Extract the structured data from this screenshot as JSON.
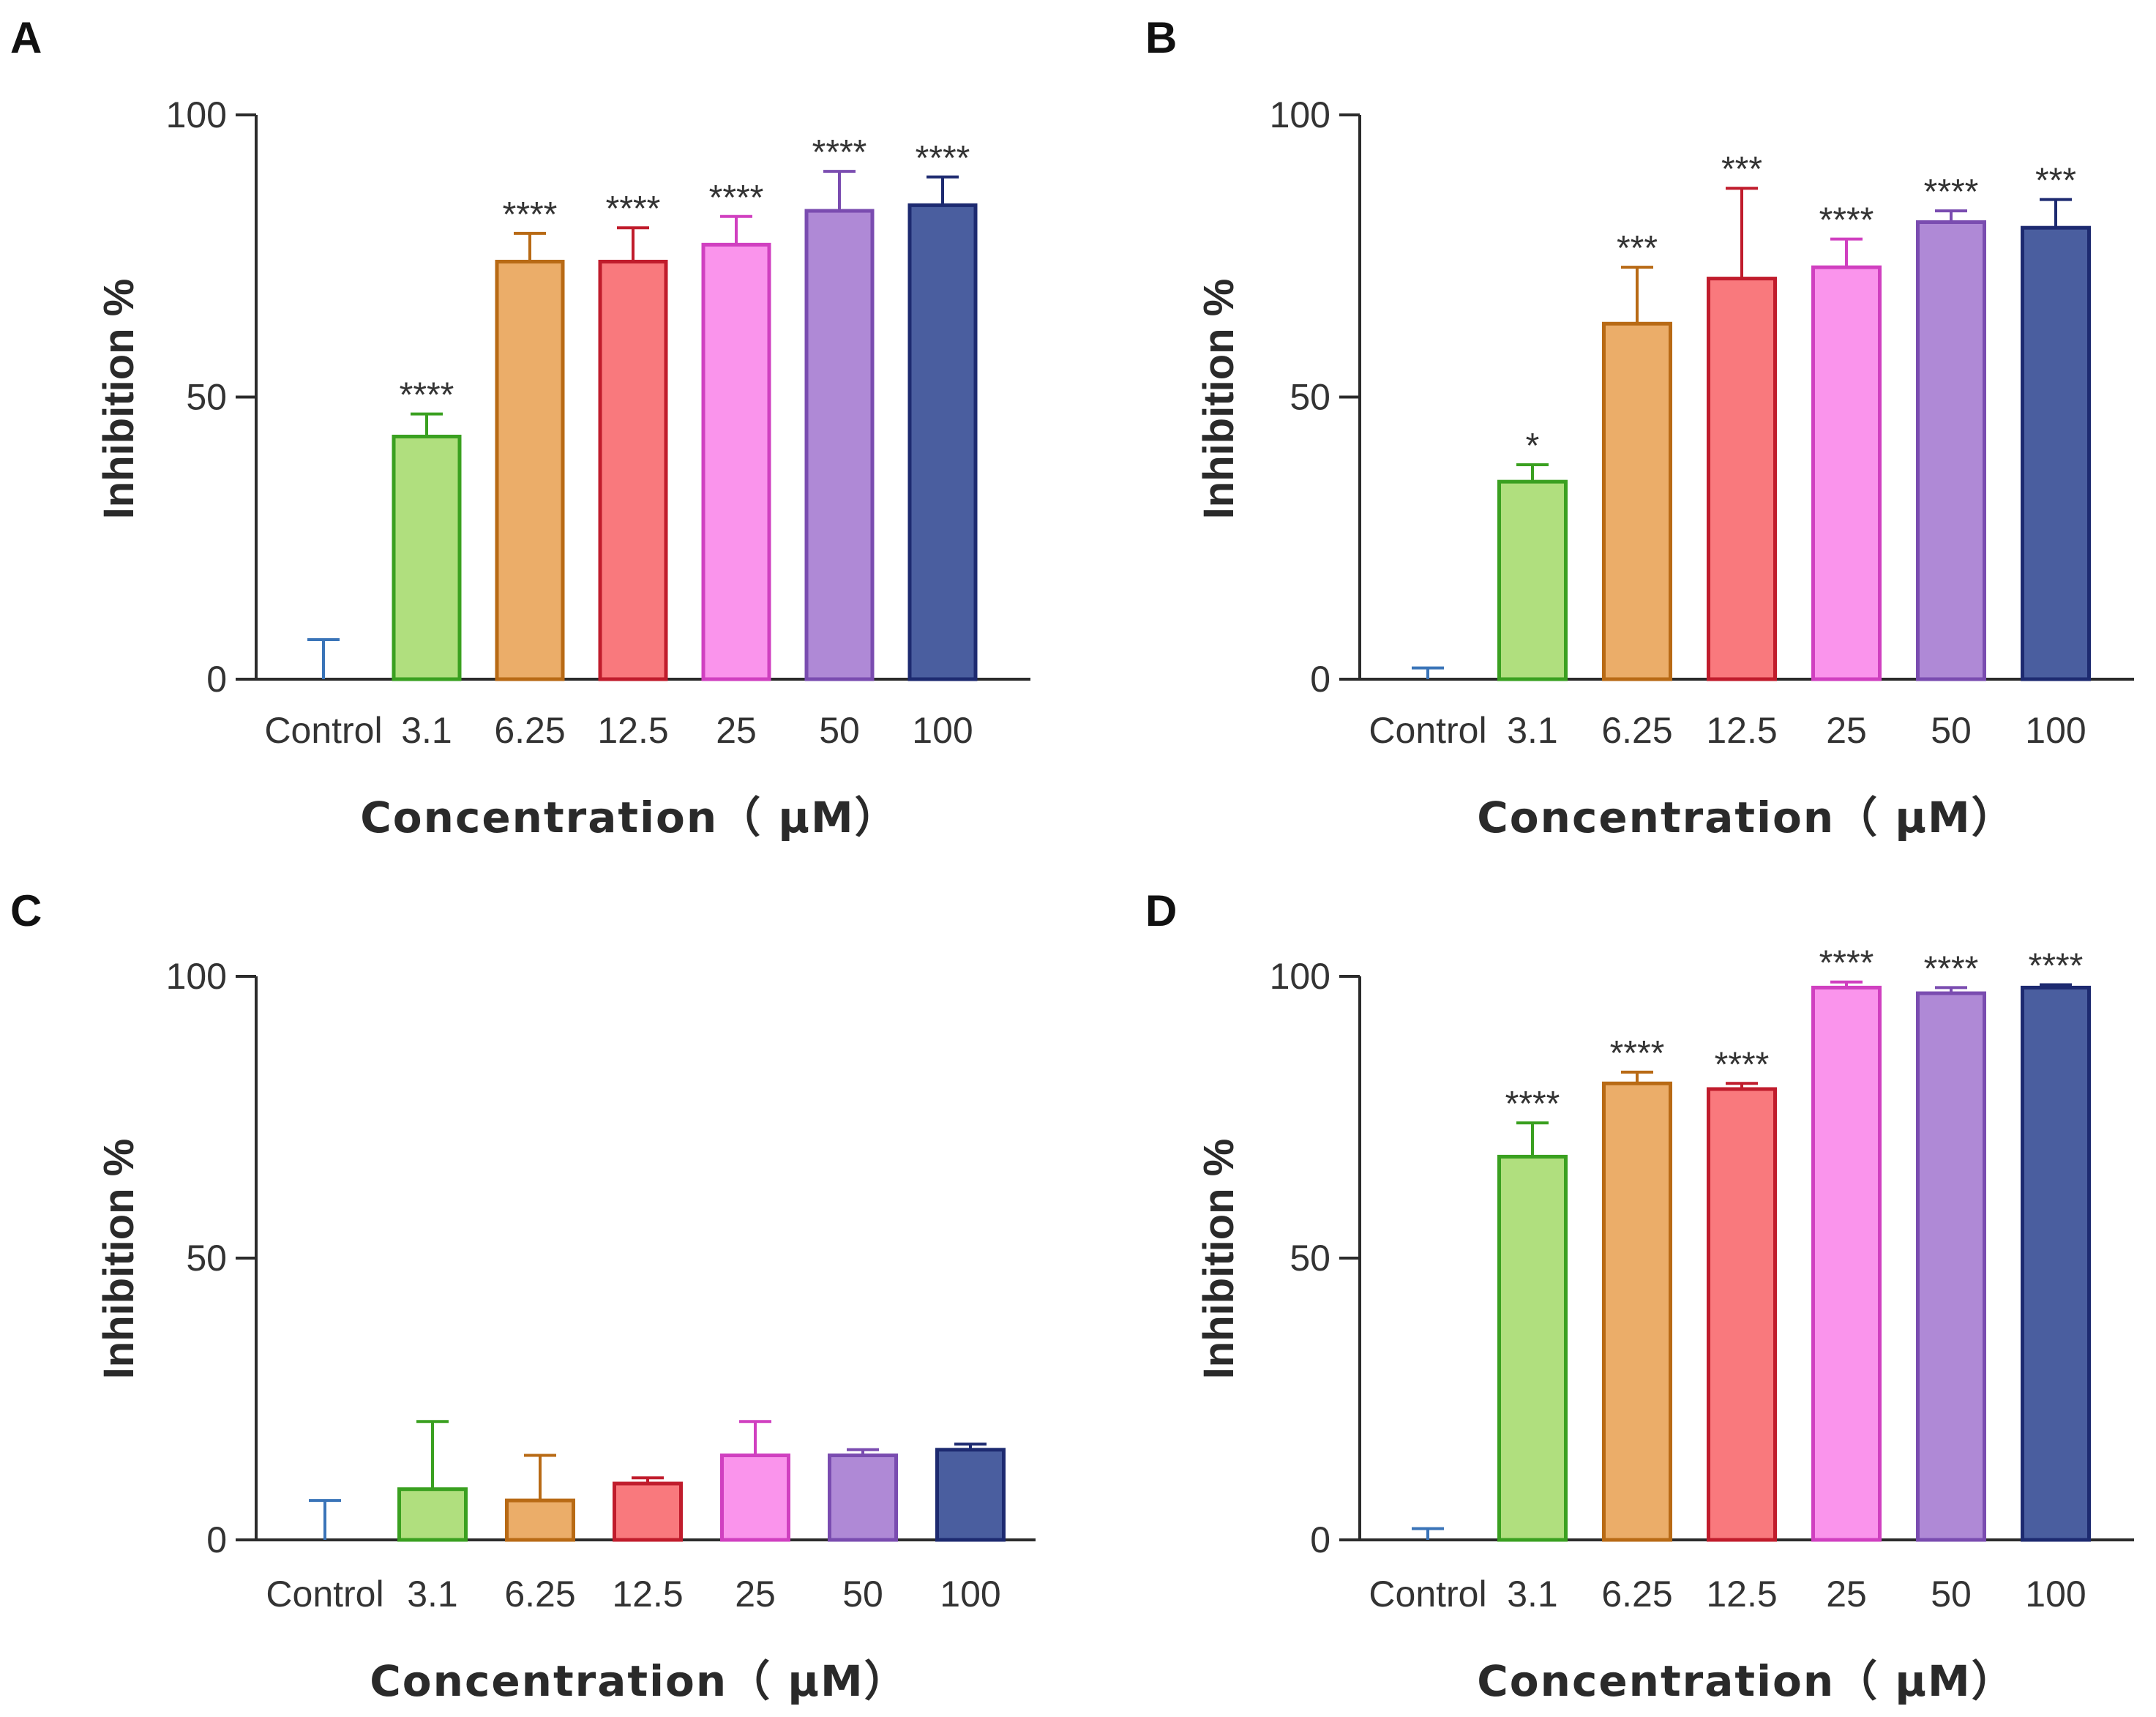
{
  "colors": {
    "axis": "#2b2b2b",
    "fills": [
      "#4a84c8",
      "#b0df7e",
      "#ebad69",
      "#f9797d",
      "#fa94ec",
      "#af89d6",
      "#4a5e9f"
    ],
    "strokes": [
      "#3a74b8",
      "#3aa020",
      "#b86a15",
      "#c01c2c",
      "#d040c0",
      "#7a4cb0",
      "#1d2a70"
    ]
  },
  "chart_data": [
    {
      "panel": "A",
      "type": "bar",
      "xlabel": "Concentration（ μM）",
      "ylabel": "Inhibition %",
      "ylim": [
        0,
        100
      ],
      "yticks": [
        "0",
        "50",
        "100"
      ],
      "categories": [
        "Control",
        "3.1",
        "6.25",
        "12.5",
        "25",
        "50",
        "100"
      ],
      "values": [
        0,
        43,
        74,
        74,
        77,
        83,
        84
      ],
      "errors": [
        7,
        4,
        5,
        6,
        5,
        7,
        5
      ],
      "significance": [
        "",
        "****",
        "****",
        "****",
        "****",
        "****",
        "****"
      ]
    },
    {
      "panel": "B",
      "type": "bar",
      "xlabel": "Concentration（ μM）",
      "ylabel": "Inhibition %",
      "ylim": [
        0,
        100
      ],
      "yticks": [
        "0",
        "50",
        "100"
      ],
      "categories": [
        "Control",
        "3.1",
        "6.25",
        "12.5",
        "25",
        "50",
        "100"
      ],
      "values": [
        0,
        35,
        63,
        71,
        73,
        81,
        80
      ],
      "errors": [
        2,
        3,
        10,
        16,
        5,
        2,
        5
      ],
      "significance": [
        "",
        "*",
        "***",
        "***",
        "****",
        "****",
        "***"
      ]
    },
    {
      "panel": "C",
      "type": "bar",
      "xlabel": "Concentration（ μM）",
      "ylabel": "Inhibition %",
      "ylim": [
        0,
        100
      ],
      "yticks": [
        "0",
        "50",
        "100"
      ],
      "categories": [
        "Control",
        "3.1",
        "6.25",
        "12.5",
        "25",
        "50",
        "100"
      ],
      "values": [
        0,
        9,
        7,
        10,
        15,
        15,
        16
      ],
      "errors": [
        7,
        12,
        8,
        1,
        6,
        1,
        1
      ],
      "significance": [
        "",
        "",
        "",
        "",
        "",
        "",
        ""
      ]
    },
    {
      "panel": "D",
      "type": "bar",
      "xlabel": "Concentration（ μM）",
      "ylabel": "Inhibition %",
      "ylim": [
        0,
        100
      ],
      "yticks": [
        "0",
        "50",
        "100"
      ],
      "categories": [
        "Control",
        "3.1",
        "6.25",
        "12.5",
        "25",
        "50",
        "100"
      ],
      "values": [
        0,
        68,
        81,
        80,
        98,
        97,
        98
      ],
      "errors": [
        2,
        6,
        2,
        1,
        1,
        1,
        0.5
      ],
      "significance": [
        "",
        "****",
        "****",
        "****",
        "****",
        "****",
        "****"
      ]
    }
  ]
}
